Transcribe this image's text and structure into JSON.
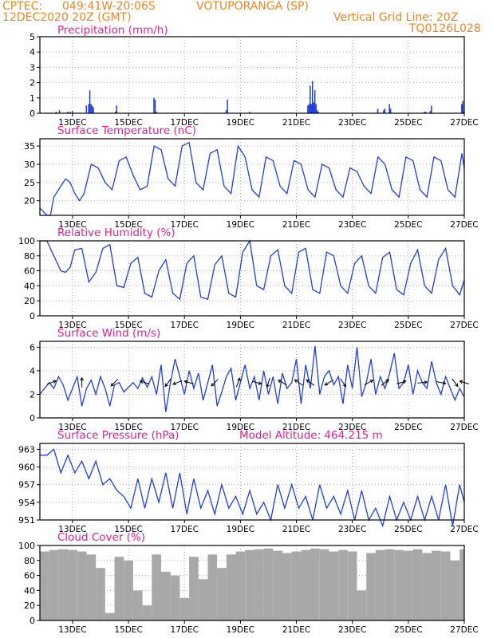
{
  "header": {
    "source": "CPTEC:",
    "coords": "049:41W-20:06S",
    "station": "VOTUPORANGA (SP)",
    "init_time": "12DEC2020 20Z (GMT)",
    "grid_note": "Vertical Grid Line: 20Z",
    "run_id": "TQ0126L028"
  },
  "colors": {
    "header": "#e8862a",
    "title": "#e0208f",
    "series": "#1f3fd8",
    "cloud": "#a8a8a8",
    "grid": "#9a9a9a"
  },
  "x_axis": {
    "tick_labels": [
      "13DEC",
      "15DEC",
      "17DEC",
      "19DEC",
      "21DEC",
      "23DEC",
      "25DEC",
      "27DEC"
    ],
    "tick_hours": [
      28,
      76,
      124,
      172,
      220,
      268,
      316,
      364
    ],
    "range_hours": [
      0,
      364
    ],
    "vertical_grid_note": "daily at 20Z"
  },
  "chart_data": [
    {
      "type": "bar",
      "title": "Precipitation (mm/h)",
      "ylim": [
        0,
        5
      ],
      "yticks": [
        0,
        1,
        2,
        3,
        4,
        5
      ],
      "x_hours": [
        14,
        17,
        24,
        26,
        28,
        40,
        42,
        43,
        44,
        45,
        46,
        65,
        66,
        98,
        99,
        100,
        160,
        161,
        180,
        230,
        231,
        232,
        233,
        234,
        235,
        236,
        237,
        238,
        239,
        290,
        290,
        295,
        296,
        300,
        301,
        330,
        331,
        335,
        336,
        362,
        363,
        364
      ],
      "values": [
        0.1,
        0.2,
        0.1,
        0.1,
        0.15,
        0.5,
        0.6,
        1.5,
        0.6,
        0.5,
        0.4,
        0.1,
        0.5,
        1.0,
        0.9,
        0.1,
        0.2,
        0.9,
        0.1,
        0.5,
        0.6,
        1.8,
        0.6,
        2.1,
        0.7,
        1.5,
        0.6,
        0.2,
        0.1,
        0.3,
        0.15,
        0.2,
        0.3,
        0.6,
        0.3,
        0.1,
        0.1,
        0.15,
        0.5,
        0.6,
        0.8,
        0.1
      ]
    },
    {
      "type": "line",
      "title": "Surface Temperature (nC)",
      "ylim": [
        16,
        37
      ],
      "yticks": [
        20,
        25,
        30,
        35
      ],
      "x_hours": [
        0,
        3,
        6,
        9,
        12,
        18,
        22,
        26,
        30,
        34,
        38,
        44,
        50,
        56,
        62,
        68,
        74,
        80,
        86,
        92,
        98,
        104,
        110,
        116,
        122,
        128,
        134,
        140,
        146,
        152,
        158,
        164,
        170,
        176,
        182,
        188,
        194,
        200,
        206,
        212,
        218,
        224,
        230,
        236,
        242,
        248,
        254,
        260,
        266,
        272,
        278,
        284,
        290,
        296,
        302,
        308,
        314,
        320,
        326,
        332,
        338,
        344,
        350,
        356,
        362,
        364
      ],
      "values": [
        18,
        17,
        16,
        16,
        21,
        24,
        26,
        25,
        22,
        20,
        22,
        30,
        29,
        25,
        23,
        31,
        32,
        27,
        23,
        24,
        35,
        34,
        26,
        24,
        35,
        36,
        25,
        23,
        33,
        34,
        24,
        22,
        35,
        32,
        23,
        21,
        32,
        31,
        24,
        22,
        31,
        30,
        23,
        21,
        30,
        29,
        23,
        21,
        29,
        28,
        24,
        22,
        32,
        30,
        23,
        21,
        32,
        31,
        23,
        21,
        32,
        31,
        23,
        21,
        33,
        29
      ]
    },
    {
      "type": "line",
      "title": "Relative Humidity (%)",
      "ylim": [
        0,
        100
      ],
      "yticks": [
        0,
        20,
        40,
        60,
        80,
        100
      ],
      "x_hours": [
        0,
        6,
        12,
        18,
        22,
        26,
        30,
        36,
        42,
        48,
        54,
        60,
        66,
        72,
        78,
        84,
        90,
        96,
        102,
        108,
        114,
        120,
        126,
        132,
        138,
        144,
        150,
        156,
        162,
        168,
        174,
        180,
        186,
        192,
        198,
        204,
        210,
        216,
        222,
        228,
        234,
        240,
        246,
        252,
        258,
        264,
        270,
        276,
        282,
        288,
        294,
        300,
        306,
        312,
        318,
        324,
        330,
        336,
        342,
        348,
        354,
        360,
        364
      ],
      "values": [
        100,
        100,
        80,
        60,
        58,
        65,
        88,
        90,
        45,
        58,
        90,
        95,
        40,
        38,
        70,
        78,
        30,
        25,
        60,
        75,
        30,
        22,
        70,
        80,
        25,
        22,
        68,
        80,
        30,
        25,
        85,
        100,
        40,
        35,
        80,
        88,
        40,
        30,
        85,
        90,
        35,
        30,
        85,
        80,
        40,
        30,
        70,
        80,
        40,
        30,
        78,
        85,
        35,
        28,
        70,
        88,
        40,
        30,
        75,
        90,
        40,
        28,
        48
      ]
    },
    {
      "type": "line",
      "title": "Surface Wind (m/s)",
      "ylim": [
        0,
        6.5
      ],
      "yticks": [
        0,
        2,
        4,
        6
      ],
      "x_hours": [
        0,
        4,
        8,
        12,
        16,
        20,
        24,
        28,
        32,
        36,
        40,
        44,
        48,
        52,
        56,
        60,
        64,
        68,
        72,
        76,
        80,
        84,
        88,
        92,
        96,
        100,
        104,
        108,
        112,
        116,
        120,
        124,
        128,
        132,
        136,
        140,
        144,
        148,
        152,
        156,
        160,
        164,
        168,
        172,
        176,
        180,
        184,
        188,
        192,
        196,
        200,
        204,
        208,
        212,
        216,
        220,
        224,
        228,
        232,
        236,
        240,
        244,
        248,
        252,
        256,
        260,
        264,
        268,
        272,
        276,
        280,
        284,
        288,
        292,
        296,
        300,
        304,
        308,
        312,
        316,
        320,
        324,
        328,
        332,
        336,
        340,
        344,
        348,
        352,
        356,
        360,
        364
      ],
      "values": [
        2.0,
        2.5,
        3.0,
        2.5,
        3.5,
        2.8,
        1.5,
        2.5,
        3.5,
        1.0,
        2.5,
        3.2,
        2.0,
        3.5,
        2.5,
        1.0,
        2.8,
        3.0,
        2.2,
        2.6,
        3.0,
        2.5,
        3.4,
        2.6,
        3.5,
        2.0,
        4.5,
        0.5,
        3.0,
        5.0,
        3.5,
        2.0,
        4.0,
        2.5,
        3.8,
        1.5,
        3.0,
        4.5,
        1.0,
        2.2,
        3.5,
        4.2,
        1.5,
        3.0,
        4.5,
        2.5,
        3.5,
        1.5,
        4.0,
        2.0,
        3.5,
        1.2,
        3.8,
        2.5,
        3.0,
        5.0,
        1.2,
        4.5,
        2.5,
        6.1,
        2.0,
        3.5,
        4.0,
        2.8,
        3.5,
        1.2,
        4.5,
        2.5,
        6.0,
        1.8,
        3.0,
        5.0,
        2.0,
        3.5,
        2.5,
        3.8,
        5.5,
        2.5,
        3.0,
        4.5,
        2.0,
        4.0,
        3.0,
        2.5,
        4.8,
        3.0,
        2.0,
        3.5,
        2.5,
        1.5,
        2.5,
        1.8
      ],
      "arrows": {
        "x_hours": [
          10,
          36,
          64,
          90,
          110,
          118,
          128,
          150,
          170,
          186,
          196,
          208,
          222,
          232,
          248,
          260,
          282,
          296,
          310,
          328,
          344,
          356,
          364
        ],
        "u": [
          1,
          0,
          -0.6,
          -1,
          -0.6,
          -1,
          -1,
          -1,
          0.4,
          1,
          -0.3,
          -1,
          -1,
          -0.8,
          -1,
          0.7,
          0.9,
          1,
          1,
          0.8,
          1,
          0.6,
          -1
        ],
        "v": [
          0.4,
          1,
          -0.6,
          0.3,
          -0.8,
          -0.4,
          0.3,
          -1,
          1,
          -0.3,
          -1,
          0.6,
          0.7,
          0.6,
          -0.6,
          -1,
          0.5,
          0.8,
          0.3,
          0.1,
          -0.2,
          -0.8,
          0.3
        ]
      }
    },
    {
      "type": "line",
      "title": "Surface Pressure (hPa)",
      "annotation": "Model Altitude: 464.215  m",
      "ylim": [
        951,
        964
      ],
      "yticks": [
        951,
        954,
        957,
        960,
        963
      ],
      "x_hours": [
        0,
        6,
        12,
        18,
        24,
        30,
        36,
        42,
        48,
        54,
        60,
        66,
        72,
        78,
        84,
        90,
        96,
        102,
        108,
        114,
        120,
        126,
        132,
        138,
        144,
        150,
        156,
        162,
        168,
        174,
        180,
        186,
        192,
        198,
        204,
        210,
        216,
        222,
        228,
        234,
        240,
        246,
        252,
        258,
        264,
        270,
        276,
        282,
        288,
        294,
        300,
        306,
        312,
        318,
        324,
        330,
        336,
        342,
        348,
        354,
        360,
        364
      ],
      "values": [
        962,
        962,
        963,
        959,
        962,
        959,
        961,
        958,
        961,
        957,
        958,
        956,
        955,
        953,
        958,
        953,
        958,
        954,
        959,
        953,
        959,
        952,
        958,
        953,
        956,
        952,
        957,
        953,
        955,
        952,
        956,
        952,
        954,
        951,
        957,
        953,
        957,
        953,
        955,
        951,
        957,
        953,
        955,
        952,
        956,
        951,
        956,
        951,
        953,
        950,
        955,
        951,
        954,
        951,
        955,
        951,
        955,
        951,
        957,
        950,
        957,
        954
      ]
    },
    {
      "type": "bar",
      "title": "Cloud Cover (%)",
      "ylim": [
        0,
        100
      ],
      "yticks": [
        0,
        20,
        40,
        60,
        80,
        100
      ],
      "x_hours": [
        0,
        8,
        16,
        24,
        32,
        40,
        48,
        56,
        64,
        72,
        80,
        88,
        96,
        104,
        112,
        120,
        128,
        136,
        144,
        152,
        160,
        168,
        176,
        184,
        192,
        200,
        208,
        216,
        224,
        232,
        240,
        248,
        256,
        264,
        272,
        280,
        288,
        296,
        304,
        312,
        320,
        328,
        336,
        344,
        352,
        360
      ],
      "values": [
        92,
        94,
        95,
        94,
        92,
        88,
        70,
        10,
        85,
        80,
        40,
        20,
        88,
        65,
        60,
        30,
        85,
        55,
        88,
        70,
        88,
        92,
        94,
        95,
        96,
        93,
        90,
        92,
        94,
        96,
        95,
        92,
        94,
        92,
        40,
        90,
        94,
        95,
        94,
        93,
        95,
        90,
        93,
        92,
        80,
        95
      ]
    }
  ]
}
